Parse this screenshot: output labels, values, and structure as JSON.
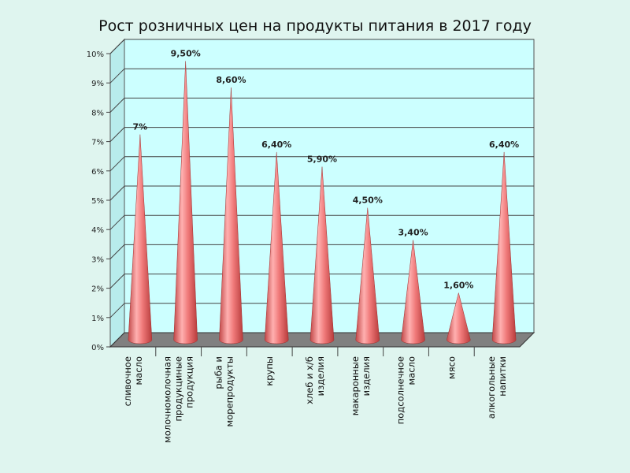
{
  "chart_data": {
    "type": "bar",
    "subtype": "3d-cone",
    "title": "Рост розничных цен на продукты питания в 2017 году",
    "xlabel": "",
    "ylabel": "",
    "ylim": [
      0,
      10
    ],
    "yticks": [
      "0%",
      "1%",
      "2%",
      "3%",
      "4%",
      "5%",
      "6%",
      "7%",
      "8%",
      "9%",
      "10%"
    ],
    "categories": [
      [
        "сливочное",
        "масло"
      ],
      [
        "молочномолочная",
        "продукциные",
        "продукция"
      ],
      [
        "рыба и",
        "морепродукты"
      ],
      [
        "крупы"
      ],
      [
        "хлеб и х/б",
        "изделия"
      ],
      [
        "макаронные",
        "изделия"
      ],
      [
        "подсолнечное",
        "масло"
      ],
      [
        "мясо"
      ],
      [
        "алкогольные",
        "напитки"
      ]
    ],
    "values": [
      7,
      9.5,
      8.6,
      6.4,
      5.9,
      4.5,
      3.4,
      1.6,
      6.4
    ],
    "data_labels": [
      "7%",
      "9,50%",
      "8,60%",
      "6,40%",
      "5,90%",
      "4,50%",
      "3,40%",
      "1,60%",
      "6,40%"
    ],
    "grid": true,
    "legend": "none",
    "colors": {
      "cone": "#f08080",
      "wall": "#ccffff",
      "floor": "#808080"
    }
  }
}
